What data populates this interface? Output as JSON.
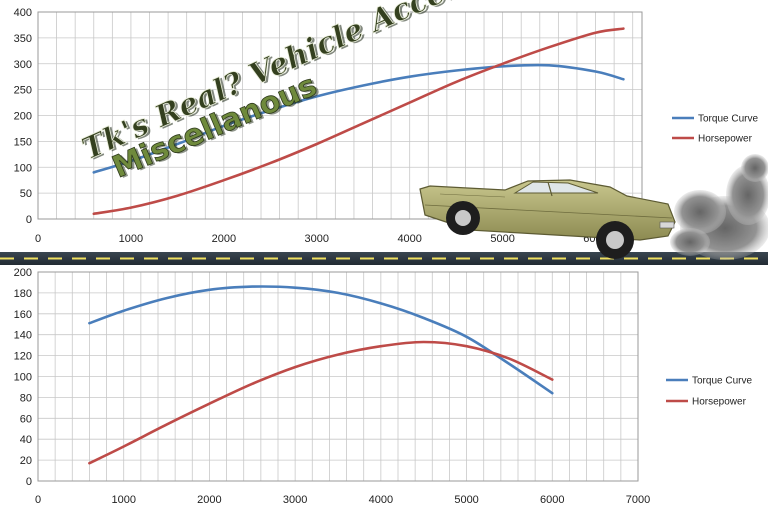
{
  "banner": {
    "title": "Tk's Real? Vehicle Acceleration",
    "subtitle": "Miscellanous"
  },
  "colors": {
    "torque": "#4a7ebb",
    "horsepower": "#be4b48",
    "grid": "#c8c8c8",
    "road": "#2f3b45",
    "road_line": "#f0e060",
    "car_body": "#a9a76a",
    "smoke": "#707070"
  },
  "chart_data": [
    {
      "type": "line",
      "title": "",
      "xlabel": "",
      "ylabel": "",
      "xlim": [
        0,
        6500
      ],
      "ylim": [
        0,
        400
      ],
      "xticks": [
        0,
        1000,
        2000,
        3000,
        4000,
        5000,
        6000
      ],
      "yticks": [
        0,
        50,
        100,
        150,
        200,
        250,
        300,
        350,
        400
      ],
      "grid": true,
      "legend_position": "right",
      "series": [
        {
          "name": "Torque Curve",
          "color": "#4a7ebb",
          "x": [
            600,
            1000,
            1500,
            2000,
            2500,
            3000,
            3500,
            4000,
            4500,
            5000,
            5500,
            6000,
            6300
          ],
          "y": [
            90,
            112,
            145,
            180,
            210,
            237,
            258,
            275,
            287,
            295,
            297,
            285,
            270
          ]
        },
        {
          "name": "Horsepower",
          "color": "#be4b48",
          "x": [
            600,
            1000,
            1500,
            2000,
            2500,
            3000,
            3500,
            4000,
            4500,
            5000,
            5500,
            6000,
            6300
          ],
          "y": [
            10,
            22,
            45,
            75,
            108,
            145,
            185,
            225,
            265,
            300,
            332,
            360,
            368
          ]
        }
      ]
    },
    {
      "type": "line",
      "title": "",
      "xlabel": "",
      "ylabel": "",
      "xlim": [
        0,
        7000
      ],
      "ylim": [
        0,
        200
      ],
      "xticks": [
        0,
        1000,
        2000,
        3000,
        4000,
        5000,
        6000,
        7000
      ],
      "yticks": [
        0,
        20,
        40,
        60,
        80,
        100,
        120,
        140,
        160,
        180,
        200
      ],
      "grid": true,
      "legend_position": "right",
      "series": [
        {
          "name": "Torque Curve",
          "color": "#4a7ebb",
          "x": [
            600,
            1000,
            1500,
            2000,
            2500,
            3000,
            3500,
            4000,
            4500,
            5000,
            5500,
            6000
          ],
          "y": [
            151,
            163,
            175,
            183,
            186,
            185,
            180,
            170,
            156,
            138,
            112,
            84
          ]
        },
        {
          "name": "Horsepower",
          "color": "#be4b48",
          "x": [
            600,
            1000,
            1500,
            2000,
            2500,
            3000,
            3500,
            4000,
            4500,
            5000,
            5500,
            6000
          ],
          "y": [
            17,
            33,
            54,
            74,
            93,
            109,
            121,
            129,
            133,
            129,
            117,
            97
          ]
        }
      ]
    }
  ]
}
